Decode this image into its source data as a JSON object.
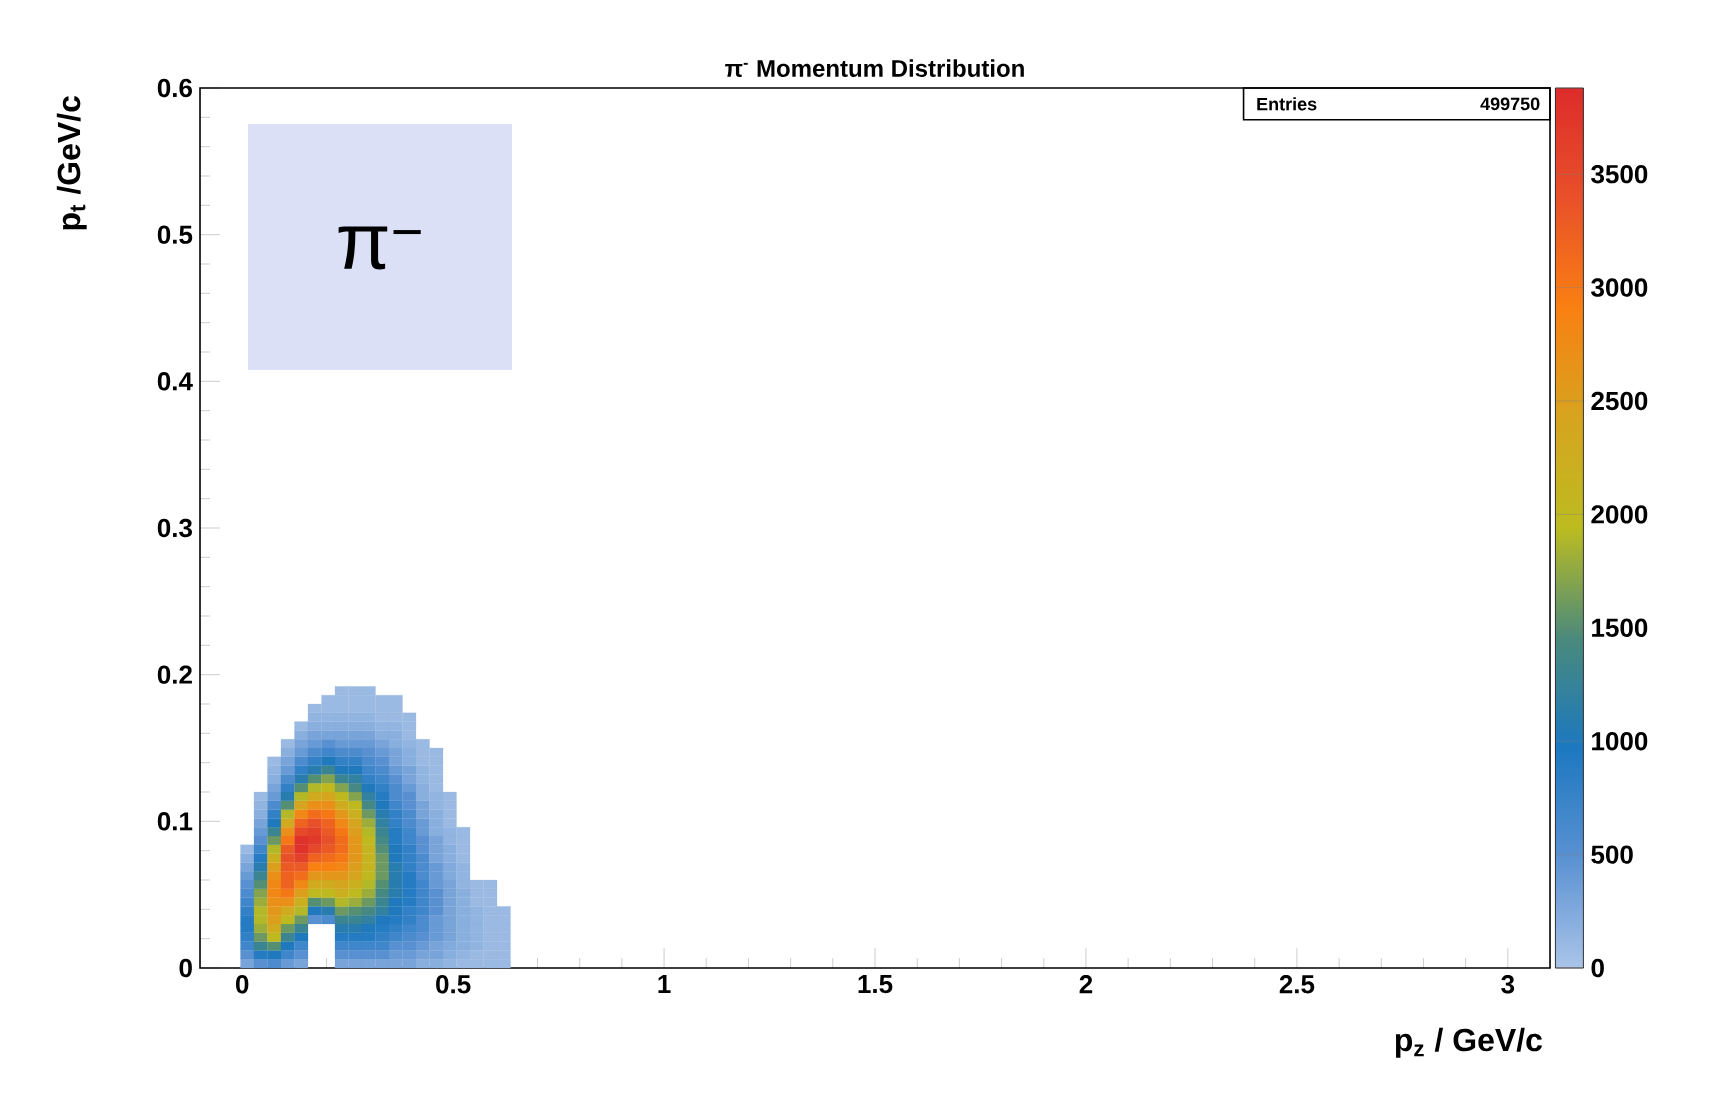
{
  "chart_data": {
    "type": "scatter",
    "title": "π$^{-}$ Momentum Distribution",
    "xlabel": "p$_{z}$ / GeV/c",
    "ylabel": "p$_{t}$ /GeV/c",
    "annotations": [
      "π$^{−}$",
      "Entries",
      "499750"
    ],
    "marker": "square",
    "xlim": [
      -0.1,
      3.1
    ],
    "ylim": [
      0,
      0.6
    ],
    "xticks": [
      0,
      0.5,
      1,
      1.5,
      2,
      2.5,
      3
    ],
    "yticks": [
      0,
      0.1,
      0.2,
      0.3,
      0.4,
      0.5,
      0.6
    ],
    "clim": [
      0,
      3880
    ],
    "cticks": [
      0,
      500,
      1000,
      1500,
      2000,
      2500,
      3000,
      3500
    ],
    "x": [
      0.012,
      0.012,
      0.012,
      0.012,
      0.012,
      0.012,
      0.012,
      0.012,
      0.012,
      0.012,
      0.012,
      0.012,
      0.012,
      0.012,
      0.044,
      0.044,
      0.044,
      0.044,
      0.044,
      0.044,
      0.044,
      0.044,
      0.044,
      0.044,
      0.044,
      0.044,
      0.044,
      0.044,
      0.044,
      0.044,
      0.044,
      0.044,
      0.044,
      0.044,
      0.076,
      0.076,
      0.076,
      0.076,
      0.076,
      0.076,
      0.076,
      0.076,
      0.076,
      0.076,
      0.076,
      0.076,
      0.076,
      0.076,
      0.076,
      0.076,
      0.076,
      0.076,
      0.076,
      0.076,
      0.076,
      0.076,
      0.076,
      0.076,
      0.108,
      0.108,
      0.108,
      0.108,
      0.108,
      0.108,
      0.108,
      0.108,
      0.108,
      0.108,
      0.108,
      0.108,
      0.108,
      0.108,
      0.108,
      0.108,
      0.108,
      0.108,
      0.108,
      0.108,
      0.108,
      0.108,
      0.108,
      0.108,
      0.108,
      0.108,
      0.14,
      0.14,
      0.14,
      0.14,
      0.14,
      0.14,
      0.14,
      0.14,
      0.14,
      0.14,
      0.14,
      0.14,
      0.14,
      0.14,
      0.14,
      0.14,
      0.14,
      0.14,
      0.14,
      0.14,
      0.14,
      0.14,
      0.14,
      0.14,
      0.14,
      0.14,
      0.14,
      0.14,
      0.172,
      0.172,
      0.172,
      0.172,
      0.172,
      0.172,
      0.172,
      0.172,
      0.172,
      0.172,
      0.172,
      0.172,
      0.172,
      0.172,
      0.172,
      0.172,
      0.172,
      0.172,
      0.172,
      0.172,
      0.172,
      0.172,
      0.172,
      0.172,
      0.172,
      0.204,
      0.204,
      0.204,
      0.204,
      0.204,
      0.204,
      0.204,
      0.204,
      0.204,
      0.204,
      0.204,
      0.204,
      0.204,
      0.204,
      0.204,
      0.204,
      0.204,
      0.204,
      0.204,
      0.204,
      0.204,
      0.204,
      0.204,
      0.204,
      0.204,
      0.204,
      0.236,
      0.236,
      0.236,
      0.236,
      0.236,
      0.236,
      0.236,
      0.236,
      0.236,
      0.236,
      0.236,
      0.236,
      0.236,
      0.236,
      0.236,
      0.236,
      0.236,
      0.236,
      0.236,
      0.236,
      0.236,
      0.236,
      0.236,
      0.236,
      0.236,
      0.236,
      0.236,
      0.236,
      0.236,
      0.236,
      0.236,
      0.236,
      0.268,
      0.268,
      0.268,
      0.268,
      0.268,
      0.268,
      0.268,
      0.268,
      0.268,
      0.268,
      0.268,
      0.268,
      0.268,
      0.268,
      0.268,
      0.268,
      0.268,
      0.268,
      0.268,
      0.268,
      0.268,
      0.268,
      0.268,
      0.268,
      0.268,
      0.268,
      0.268,
      0.268,
      0.268,
      0.268,
      0.268,
      0.268,
      0.3,
      0.3,
      0.3,
      0.3,
      0.3,
      0.3,
      0.3,
      0.3,
      0.3,
      0.3,
      0.3,
      0.3,
      0.3,
      0.3,
      0.3,
      0.3,
      0.3,
      0.3,
      0.3,
      0.3,
      0.3,
      0.3,
      0.3,
      0.3,
      0.3,
      0.3,
      0.3,
      0.3,
      0.3,
      0.3,
      0.3,
      0.3,
      0.332,
      0.332,
      0.332,
      0.332,
      0.332,
      0.332,
      0.332,
      0.332,
      0.332,
      0.332,
      0.332,
      0.332,
      0.332,
      0.332,
      0.332,
      0.332,
      0.332,
      0.332,
      0.332,
      0.332,
      0.332,
      0.332,
      0.332,
      0.332,
      0.332,
      0.332,
      0.332,
      0.332,
      0.332,
      0.332,
      0.332,
      0.364,
      0.364,
      0.364,
      0.364,
      0.364,
      0.364,
      0.364,
      0.364,
      0.364,
      0.364,
      0.364,
      0.364,
      0.364,
      0.364,
      0.364,
      0.364,
      0.364,
      0.364,
      0.364,
      0.364,
      0.364,
      0.364,
      0.364,
      0.364,
      0.364,
      0.364,
      0.364,
      0.364,
      0.364,
      0.364,
      0.364,
      0.396,
      0.396,
      0.396,
      0.396,
      0.396,
      0.396,
      0.396,
      0.396,
      0.396,
      0.396,
      0.396,
      0.396,
      0.396,
      0.396,
      0.396,
      0.396,
      0.396,
      0.396,
      0.396,
      0.396,
      0.396,
      0.396,
      0.396,
      0.396,
      0.396,
      0.396,
      0.396,
      0.396,
      0.396,
      0.428,
      0.428,
      0.428,
      0.428,
      0.428,
      0.428,
      0.428,
      0.428,
      0.428,
      0.428,
      0.428,
      0.428,
      0.428,
      0.428,
      0.428,
      0.428,
      0.428,
      0.428,
      0.428,
      0.428,
      0.428,
      0.428,
      0.428,
      0.428,
      0.428,
      0.428,
      0.46,
      0.46,
      0.46,
      0.46,
      0.46,
      0.46,
      0.46,
      0.46,
      0.46,
      0.46,
      0.46,
      0.46,
      0.46,
      0.46,
      0.46,
      0.46,
      0.46,
      0.46,
      0.46,
      0.46,
      0.46,
      0.46,
      0.46,
      0.46,
      0.46,
      0.492,
      0.492,
      0.492,
      0.492,
      0.492,
      0.492,
      0.492,
      0.492,
      0.492,
      0.492,
      0.492,
      0.492,
      0.492,
      0.492,
      0.492,
      0.492,
      0.492,
      0.492,
      0.492,
      0.492,
      0.524,
      0.524,
      0.524,
      0.524,
      0.524,
      0.524,
      0.524,
      0.524,
      0.524,
      0.524,
      0.524,
      0.524,
      0.524,
      0.524,
      0.524,
      0.524,
      0.556,
      0.556,
      0.556,
      0.556,
      0.556,
      0.556,
      0.556,
      0.556,
      0.556,
      0.556,
      0.588,
      0.588,
      0.588,
      0.588,
      0.588,
      0.588,
      0.588,
      0.588,
      0.588,
      0.588,
      0.62,
      0.62,
      0.62,
      0.62,
      0.62,
      0.62,
      0.62
    ],
    "values": [
      0.003,
      0.009,
      0.015,
      0.021,
      0.027,
      0.033,
      0.039,
      0.045,
      0.051,
      0.057,
      0.063,
      0.069,
      0.075,
      0.081,
      0.003,
      0.009,
      0.015,
      0.021,
      0.027,
      0.033,
      0.039,
      0.045,
      0.051,
      0.057,
      0.063,
      0.069,
      0.075,
      0.081,
      0.087,
      0.093,
      0.099,
      0.105,
      0.111,
      0.117,
      0.003,
      0.009,
      0.015,
      0.021,
      0.027,
      0.033,
      0.039,
      0.045,
      0.051,
      0.057,
      0.063,
      0.069,
      0.075,
      0.081,
      0.087,
      0.093,
      0.099,
      0.105,
      0.111,
      0.117,
      0.123,
      0.129,
      0.135,
      0.141,
      0.003,
      0.009,
      0.015,
      0.021,
      0.027,
      0.033,
      0.039,
      0.045,
      0.051,
      0.057,
      0.063,
      0.069,
      0.075,
      0.081,
      0.087,
      0.093,
      0.099,
      0.105,
      0.111,
      0.117,
      0.123,
      0.129,
      0.135,
      0.141,
      0.147,
      0.153,
      0.003,
      0.009,
      0.015,
      0.021,
      0.027,
      0.033,
      0.039,
      0.045,
      0.051,
      0.057,
      0.063,
      0.069,
      0.075,
      0.081,
      0.087,
      0.093,
      0.099,
      0.105,
      0.111,
      0.117,
      0.123,
      0.129,
      0.135,
      0.141,
      0.147,
      0.153,
      0.159,
      0.165,
      0.033,
      0.039,
      0.045,
      0.051,
      0.057,
      0.063,
      0.069,
      0.075,
      0.081,
      0.087,
      0.093,
      0.099,
      0.105,
      0.111,
      0.117,
      0.123,
      0.129,
      0.135,
      0.141,
      0.147,
      0.153,
      0.159,
      0.165,
      0.171,
      0.177,
      0.033,
      0.039,
      0.045,
      0.051,
      0.057,
      0.063,
      0.069,
      0.075,
      0.081,
      0.087,
      0.093,
      0.099,
      0.105,
      0.111,
      0.117,
      0.123,
      0.129,
      0.135,
      0.141,
      0.147,
      0.153,
      0.159,
      0.165,
      0.171,
      0.177,
      0.183,
      0.003,
      0.009,
      0.015,
      0.021,
      0.027,
      0.033,
      0.039,
      0.045,
      0.051,
      0.057,
      0.063,
      0.069,
      0.075,
      0.081,
      0.087,
      0.093,
      0.099,
      0.105,
      0.111,
      0.117,
      0.123,
      0.129,
      0.135,
      0.141,
      0.147,
      0.153,
      0.159,
      0.165,
      0.171,
      0.177,
      0.183,
      0.189,
      0.003,
      0.009,
      0.015,
      0.021,
      0.027,
      0.033,
      0.039,
      0.045,
      0.051,
      0.057,
      0.063,
      0.069,
      0.075,
      0.081,
      0.087,
      0.093,
      0.099,
      0.105,
      0.111,
      0.117,
      0.123,
      0.129,
      0.135,
      0.141,
      0.147,
      0.153,
      0.159,
      0.165,
      0.171,
      0.177,
      0.183,
      0.189,
      0.003,
      0.009,
      0.015,
      0.021,
      0.027,
      0.033,
      0.039,
      0.045,
      0.051,
      0.057,
      0.063,
      0.069,
      0.075,
      0.081,
      0.087,
      0.093,
      0.099,
      0.105,
      0.111,
      0.117,
      0.123,
      0.129,
      0.135,
      0.141,
      0.147,
      0.153,
      0.159,
      0.165,
      0.171,
      0.177,
      0.183,
      0.189,
      0.003,
      0.009,
      0.015,
      0.021,
      0.027,
      0.033,
      0.039,
      0.045,
      0.051,
      0.057,
      0.063,
      0.069,
      0.075,
      0.081,
      0.087,
      0.093,
      0.099,
      0.105,
      0.111,
      0.117,
      0.123,
      0.129,
      0.135,
      0.141,
      0.147,
      0.153,
      0.159,
      0.165,
      0.171,
      0.177,
      0.183,
      0.003,
      0.009,
      0.015,
      0.021,
      0.027,
      0.033,
      0.039,
      0.045,
      0.051,
      0.057,
      0.063,
      0.069,
      0.075,
      0.081,
      0.087,
      0.093,
      0.099,
      0.105,
      0.111,
      0.117,
      0.123,
      0.129,
      0.135,
      0.141,
      0.147,
      0.153,
      0.159,
      0.165,
      0.171,
      0.177,
      0.183,
      0.003,
      0.009,
      0.015,
      0.021,
      0.027,
      0.033,
      0.039,
      0.045,
      0.051,
      0.057,
      0.063,
      0.069,
      0.075,
      0.081,
      0.087,
      0.093,
      0.099,
      0.105,
      0.111,
      0.117,
      0.123,
      0.129,
      0.135,
      0.141,
      0.147,
      0.153,
      0.159,
      0.165,
      0.171,
      0.003,
      0.009,
      0.015,
      0.021,
      0.027,
      0.033,
      0.039,
      0.045,
      0.051,
      0.057,
      0.063,
      0.069,
      0.075,
      0.081,
      0.087,
      0.093,
      0.099,
      0.105,
      0.111,
      0.117,
      0.123,
      0.129,
      0.135,
      0.141,
      0.147,
      0.153,
      0.003,
      0.009,
      0.015,
      0.021,
      0.027,
      0.033,
      0.039,
      0.045,
      0.051,
      0.057,
      0.063,
      0.069,
      0.075,
      0.081,
      0.087,
      0.093,
      0.099,
      0.105,
      0.111,
      0.117,
      0.123,
      0.129,
      0.135,
      0.141,
      0.147,
      0.003,
      0.009,
      0.015,
      0.021,
      0.027,
      0.033,
      0.039,
      0.045,
      0.051,
      0.057,
      0.063,
      0.069,
      0.075,
      0.081,
      0.087,
      0.093,
      0.099,
      0.105,
      0.111,
      0.117,
      0.003,
      0.009,
      0.015,
      0.021,
      0.027,
      0.033,
      0.039,
      0.045,
      0.051,
      0.057,
      0.063,
      0.069,
      0.075,
      0.081,
      0.087,
      0.093,
      0.003,
      0.009,
      0.015,
      0.021,
      0.027,
      0.033,
      0.039,
      0.045,
      0.051,
      0.057,
      0.003,
      0.009,
      0.015,
      0.021,
      0.027,
      0.033,
      0.039,
      0.045,
      0.051,
      0.057,
      0.003,
      0.009,
      0.015,
      0.021,
      0.027,
      0.033,
      0.039
    ],
    "cvalues": [
      300,
      500,
      700,
      800,
      900,
      900,
      800,
      700,
      600,
      500,
      400,
      300,
      200,
      100,
      500,
      900,
      1300,
      1600,
      1800,
      1900,
      1900,
      1800,
      1700,
      1500,
      1300,
      1100,
      900,
      700,
      500,
      400,
      300,
      200,
      150,
      100,
      600,
      1000,
      1500,
      2000,
      2300,
      2500,
      2600,
      2700,
      2800,
      2800,
      2700,
      2500,
      2200,
      1900,
      1600,
      1300,
      1000,
      800,
      600,
      400,
      300,
      200,
      150,
      100,
      400,
      700,
      1000,
      1300,
      1600,
      2000,
      2300,
      2700,
      3000,
      3200,
      3200,
      3300,
      3400,
      3300,
      3000,
      2700,
      2300,
      1900,
      1500,
      1100,
      800,
      600,
      400,
      300,
      200,
      100,
      300,
      500,
      700,
      1000,
      1300,
      1600,
      1900,
      2200,
      2500,
      2800,
      3100,
      3300,
      3600,
      3800,
      3800,
      3500,
      3200,
      2800,
      2400,
      1900,
      1500,
      1100,
      800,
      600,
      400,
      300,
      200,
      100,
      500,
      1000,
      1500,
      2000,
      2300,
      2600,
      2900,
      3200,
      3500,
      3700,
      3600,
      3400,
      3100,
      2700,
      2300,
      1900,
      1500,
      1100,
      800,
      600,
      400,
      300,
      200,
      150,
      100,
      600,
      1100,
      1600,
      2000,
      2300,
      2600,
      2900,
      3100,
      3300,
      3400,
      3300,
      3200,
      3000,
      2700,
      2400,
      2000,
      1700,
      1300,
      1000,
      700,
      500,
      300,
      200,
      150,
      100,
      100,
      300,
      500,
      700,
      900,
      1100,
      1300,
      1600,
      1900,
      2200,
      2400,
      2600,
      2800,
      3000,
      3100,
      3100,
      3000,
      2800,
      2600,
      2300,
      2000,
      1700,
      1300,
      1000,
      800,
      600,
      400,
      300,
      200,
      150,
      100,
      100,
      100,
      300,
      500,
      700,
      900,
      1100,
      1300,
      1500,
      1800,
      2000,
      2200,
      2400,
      2500,
      2600,
      2600,
      2600,
      2500,
      2400,
      2200,
      2000,
      1700,
      1400,
      1200,
      1000,
      800,
      600,
      400,
      300,
      200,
      150,
      100,
      100,
      100,
      300,
      500,
      700,
      900,
      1000,
      1200,
      1400,
      1600,
      1800,
      1900,
      2000,
      2100,
      2100,
      2100,
      2000,
      1900,
      1800,
      1600,
      1400,
      1200,
      1000,
      800,
      700,
      600,
      500,
      400,
      300,
      200,
      150,
      100,
      100,
      100,
      300,
      500,
      700,
      800,
      900,
      1000,
      1200,
      1300,
      1400,
      1500,
      1600,
      1600,
      1600,
      1500,
      1400,
      1300,
      1200,
      1100,
      1000,
      900,
      800,
      700,
      600,
      500,
      400,
      300,
      200,
      150,
      100,
      100,
      100,
      300,
      400,
      500,
      700,
      800,
      900,
      1000,
      1000,
      1100,
      1100,
      1100,
      1100,
      1000,
      1000,
      900,
      900,
      800,
      800,
      700,
      600,
      600,
      500,
      400,
      300,
      300,
      200,
      200,
      150,
      100,
      100,
      100,
      300,
      400,
      500,
      600,
      700,
      800,
      800,
      900,
      900,
      900,
      900,
      800,
      800,
      800,
      700,
      700,
      600,
      600,
      500,
      500,
      400,
      300,
      300,
      200,
      200,
      150,
      100,
      100,
      100,
      200,
      300,
      400,
      500,
      600,
      600,
      700,
      700,
      700,
      700,
      600,
      600,
      600,
      500,
      500,
      400,
      400,
      300,
      300,
      200,
      200,
      150,
      150,
      100,
      100,
      100,
      200,
      300,
      300,
      400,
      400,
      400,
      500,
      500,
      500,
      400,
      400,
      400,
      300,
      300,
      300,
      200,
      200,
      200,
      150,
      150,
      100,
      100,
      100,
      100,
      100,
      150,
      200,
      250,
      300,
      300,
      300,
      300,
      300,
      300,
      300,
      250,
      250,
      200,
      200,
      150,
      150,
      100,
      100,
      100,
      100,
      100,
      150,
      200,
      200,
      200,
      200,
      200,
      200,
      200,
      150,
      150,
      150,
      100,
      100,
      100,
      100,
      100,
      100,
      150,
      150,
      150,
      150,
      150,
      100,
      100,
      100,
      100,
      100,
      100,
      100,
      100,
      100,
      100,
      100,
      100,
      100,
      100,
      100,
      100,
      100,
      100,
      100,
      100
    ]
  }
}
